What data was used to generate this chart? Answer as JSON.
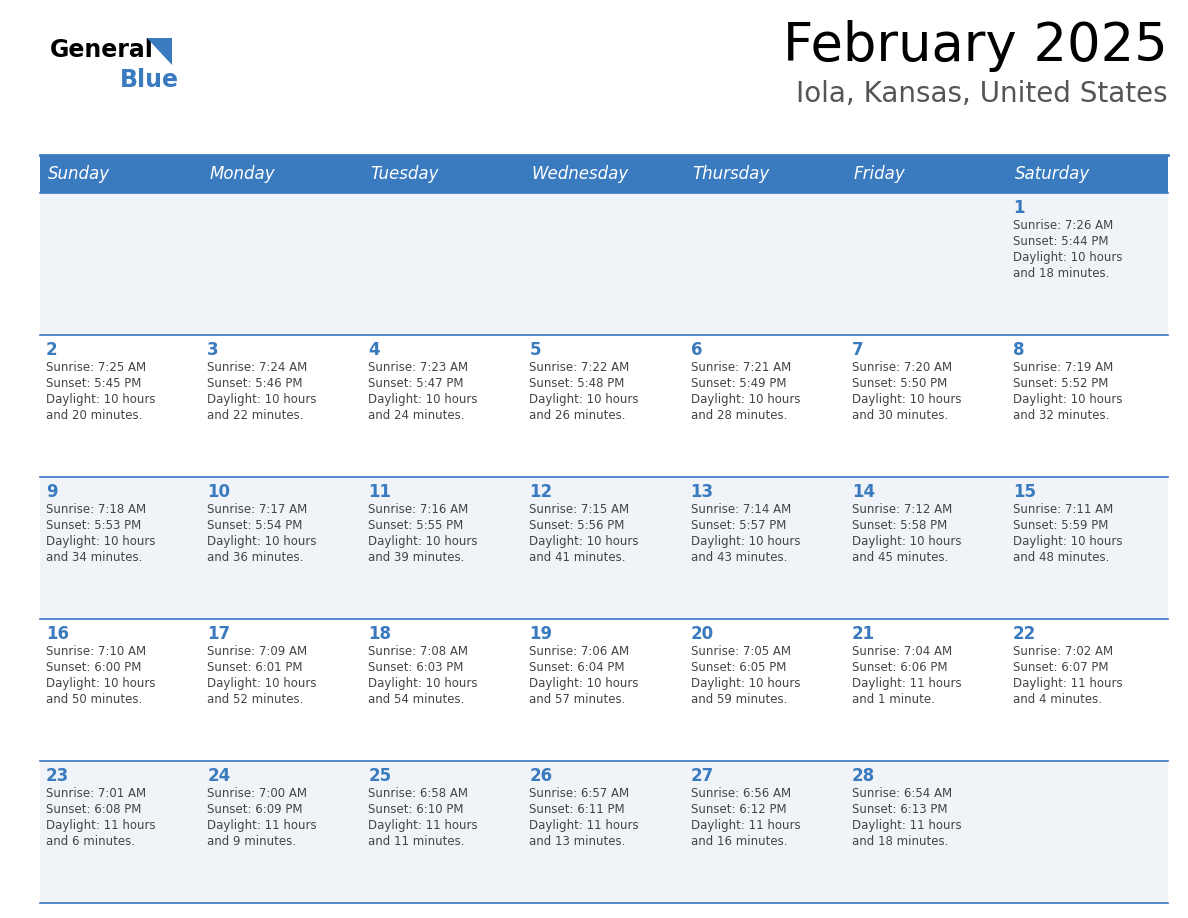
{
  "title": "February 2025",
  "subtitle": "Iola, Kansas, United States",
  "days_of_week": [
    "Sunday",
    "Monday",
    "Tuesday",
    "Wednesday",
    "Thursday",
    "Friday",
    "Saturday"
  ],
  "header_bg": "#3a7abf",
  "header_text": "#ffffff",
  "cell_bg_light": "#f0f4f8",
  "cell_bg_white": "#ffffff",
  "day_num_color": "#3a7abf",
  "text_color": "#444444",
  "border_color": "#3a7abf",
  "calendar_data": [
    [
      {
        "day": null,
        "info": null
      },
      {
        "day": null,
        "info": null
      },
      {
        "day": null,
        "info": null
      },
      {
        "day": null,
        "info": null
      },
      {
        "day": null,
        "info": null
      },
      {
        "day": null,
        "info": null
      },
      {
        "day": 1,
        "info": "Sunrise: 7:26 AM\nSunset: 5:44 PM\nDaylight: 10 hours\nand 18 minutes."
      }
    ],
    [
      {
        "day": 2,
        "info": "Sunrise: 7:25 AM\nSunset: 5:45 PM\nDaylight: 10 hours\nand 20 minutes."
      },
      {
        "day": 3,
        "info": "Sunrise: 7:24 AM\nSunset: 5:46 PM\nDaylight: 10 hours\nand 22 minutes."
      },
      {
        "day": 4,
        "info": "Sunrise: 7:23 AM\nSunset: 5:47 PM\nDaylight: 10 hours\nand 24 minutes."
      },
      {
        "day": 5,
        "info": "Sunrise: 7:22 AM\nSunset: 5:48 PM\nDaylight: 10 hours\nand 26 minutes."
      },
      {
        "day": 6,
        "info": "Sunrise: 7:21 AM\nSunset: 5:49 PM\nDaylight: 10 hours\nand 28 minutes."
      },
      {
        "day": 7,
        "info": "Sunrise: 7:20 AM\nSunset: 5:50 PM\nDaylight: 10 hours\nand 30 minutes."
      },
      {
        "day": 8,
        "info": "Sunrise: 7:19 AM\nSunset: 5:52 PM\nDaylight: 10 hours\nand 32 minutes."
      }
    ],
    [
      {
        "day": 9,
        "info": "Sunrise: 7:18 AM\nSunset: 5:53 PM\nDaylight: 10 hours\nand 34 minutes."
      },
      {
        "day": 10,
        "info": "Sunrise: 7:17 AM\nSunset: 5:54 PM\nDaylight: 10 hours\nand 36 minutes."
      },
      {
        "day": 11,
        "info": "Sunrise: 7:16 AM\nSunset: 5:55 PM\nDaylight: 10 hours\nand 39 minutes."
      },
      {
        "day": 12,
        "info": "Sunrise: 7:15 AM\nSunset: 5:56 PM\nDaylight: 10 hours\nand 41 minutes."
      },
      {
        "day": 13,
        "info": "Sunrise: 7:14 AM\nSunset: 5:57 PM\nDaylight: 10 hours\nand 43 minutes."
      },
      {
        "day": 14,
        "info": "Sunrise: 7:12 AM\nSunset: 5:58 PM\nDaylight: 10 hours\nand 45 minutes."
      },
      {
        "day": 15,
        "info": "Sunrise: 7:11 AM\nSunset: 5:59 PM\nDaylight: 10 hours\nand 48 minutes."
      }
    ],
    [
      {
        "day": 16,
        "info": "Sunrise: 7:10 AM\nSunset: 6:00 PM\nDaylight: 10 hours\nand 50 minutes."
      },
      {
        "day": 17,
        "info": "Sunrise: 7:09 AM\nSunset: 6:01 PM\nDaylight: 10 hours\nand 52 minutes."
      },
      {
        "day": 18,
        "info": "Sunrise: 7:08 AM\nSunset: 6:03 PM\nDaylight: 10 hours\nand 54 minutes."
      },
      {
        "day": 19,
        "info": "Sunrise: 7:06 AM\nSunset: 6:04 PM\nDaylight: 10 hours\nand 57 minutes."
      },
      {
        "day": 20,
        "info": "Sunrise: 7:05 AM\nSunset: 6:05 PM\nDaylight: 10 hours\nand 59 minutes."
      },
      {
        "day": 21,
        "info": "Sunrise: 7:04 AM\nSunset: 6:06 PM\nDaylight: 11 hours\nand 1 minute."
      },
      {
        "day": 22,
        "info": "Sunrise: 7:02 AM\nSunset: 6:07 PM\nDaylight: 11 hours\nand 4 minutes."
      }
    ],
    [
      {
        "day": 23,
        "info": "Sunrise: 7:01 AM\nSunset: 6:08 PM\nDaylight: 11 hours\nand 6 minutes."
      },
      {
        "day": 24,
        "info": "Sunrise: 7:00 AM\nSunset: 6:09 PM\nDaylight: 11 hours\nand 9 minutes."
      },
      {
        "day": 25,
        "info": "Sunrise: 6:58 AM\nSunset: 6:10 PM\nDaylight: 11 hours\nand 11 minutes."
      },
      {
        "day": 26,
        "info": "Sunrise: 6:57 AM\nSunset: 6:11 PM\nDaylight: 11 hours\nand 13 minutes."
      },
      {
        "day": 27,
        "info": "Sunrise: 6:56 AM\nSunset: 6:12 PM\nDaylight: 11 hours\nand 16 minutes."
      },
      {
        "day": 28,
        "info": "Sunrise: 6:54 AM\nSunset: 6:13 PM\nDaylight: 11 hours\nand 18 minutes."
      },
      {
        "day": null,
        "info": null
      }
    ]
  ],
  "logo_text_general": "General",
  "logo_text_blue": "Blue",
  "logo_triangle_color": "#3a7abf"
}
